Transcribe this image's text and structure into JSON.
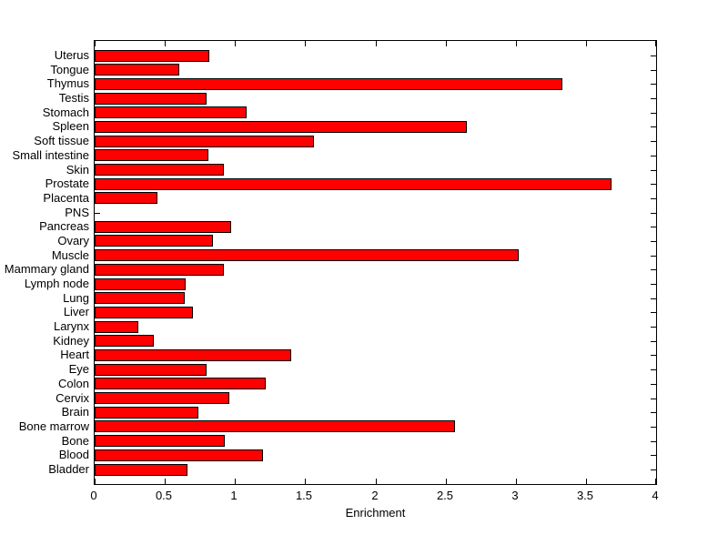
{
  "figure": {
    "background": "#ffffff",
    "text_color": "#000000"
  },
  "chart_data": {
    "type": "bar",
    "orientation": "horizontal",
    "title": "",
    "xlabel": "Enrichment",
    "ylabel": "",
    "xlim": [
      0,
      4
    ],
    "xticks": [
      0,
      0.5,
      1,
      1.5,
      2,
      2.5,
      3,
      3.5,
      4
    ],
    "grid": false,
    "legend": "none",
    "bar_color": "#ff0000",
    "bar_edge_color": "#000000",
    "axis_color": "#000000",
    "categories": [
      "Uterus",
      "Tongue",
      "Thymus",
      "Testis",
      "Stomach",
      "Spleen",
      "Soft tissue",
      "Small intestine",
      "Skin",
      "Prostate",
      "Placenta",
      "PNS",
      "Pancreas",
      "Ovary",
      "Muscle",
      "Mammary gland",
      "Lymph node",
      "Lung",
      "Liver",
      "Larynx",
      "Kidney",
      "Heart",
      "Eye",
      "Colon",
      "Cervix",
      "Brain",
      "Bone marrow",
      "Bone",
      "Blood",
      "Bladder"
    ],
    "values": [
      0.82,
      0.6,
      3.33,
      0.8,
      1.08,
      2.65,
      1.56,
      0.81,
      0.92,
      3.68,
      0.45,
      0,
      0.97,
      0.84,
      3.02,
      0.92,
      0.65,
      0.64,
      0.7,
      0.31,
      0.42,
      1.4,
      0.8,
      1.22,
      0.96,
      0.74,
      2.57,
      0.93,
      1.2,
      0.66
    ]
  }
}
